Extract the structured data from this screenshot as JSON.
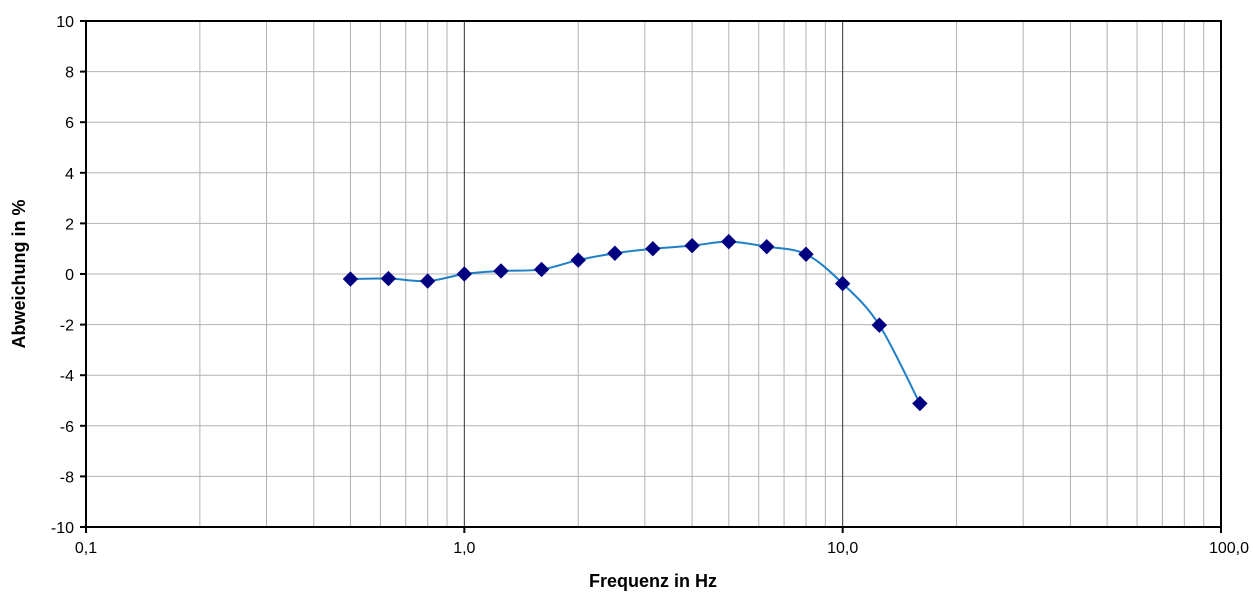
{
  "chart_data": {
    "type": "scatter",
    "title": "",
    "xlabel": "Frequenz in Hz",
    "ylabel": "Abweichung in %",
    "x_scale": "log",
    "xlim": [
      0.1,
      100
    ],
    "ylim": [
      -10,
      10
    ],
    "x_ticks": [
      0.1,
      1,
      10,
      100
    ],
    "x_tick_labels": [
      "0,1",
      "1,0",
      "10,0",
      "100,0"
    ],
    "y_ticks": [
      -10,
      -8,
      -6,
      -4,
      -2,
      0,
      2,
      4,
      6,
      8,
      10
    ],
    "y_tick_labels": [
      "-10",
      "-8",
      "-6",
      "-4",
      "-2",
      "0",
      "2",
      "4",
      "6",
      "8",
      "10"
    ],
    "grid": true,
    "legend": "none",
    "series": [
      {
        "marker": "diamond",
        "line": "smooth",
        "line_color": "#1f7fc8",
        "marker_color": "#000080",
        "x": [
          0.5,
          0.63,
          0.8,
          1.0,
          1.25,
          1.6,
          2.0,
          2.5,
          3.15,
          4.0,
          5.0,
          6.3,
          8.0,
          10.0,
          12.5,
          16.0
        ],
        "y": [
          -0.2,
          -0.18,
          -0.28,
          0.0,
          0.12,
          0.18,
          0.55,
          0.82,
          1.0,
          1.12,
          1.28,
          1.08,
          0.78,
          -0.38,
          -2.02,
          -5.12
        ]
      }
    ]
  }
}
